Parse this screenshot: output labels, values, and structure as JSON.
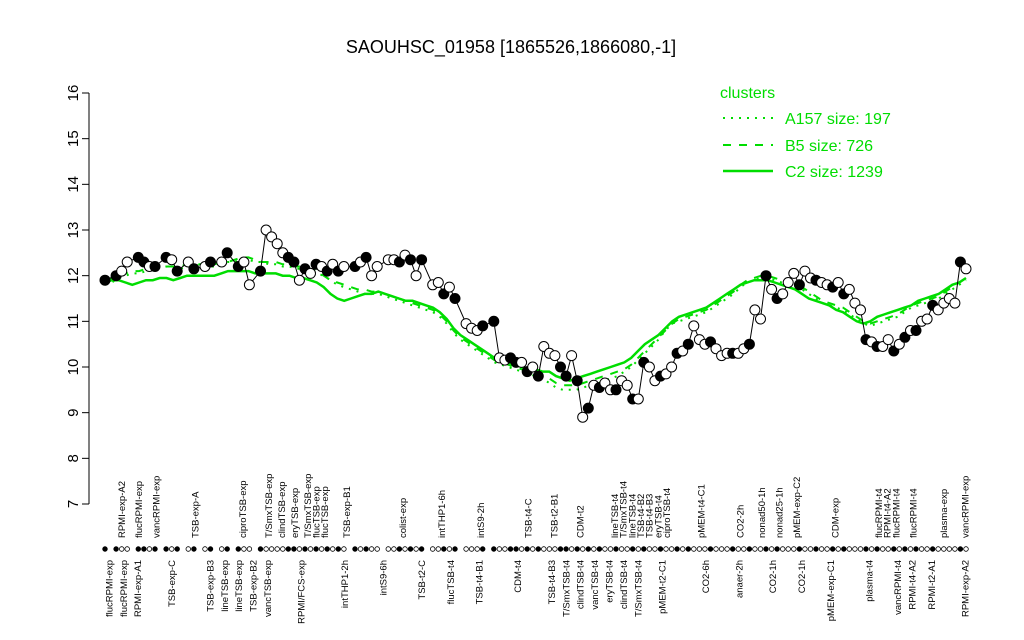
{
  "chart_data": {
    "type": "line",
    "title": "SAOUHSC_01958 [1865526,1866080,-1]",
    "ylim": [
      7,
      16
    ],
    "yticks": [
      7,
      8,
      9,
      10,
      11,
      12,
      13,
      14,
      15,
      16
    ],
    "xlim": [
      1,
      166
    ],
    "top_labels": [
      {
        "x": 5,
        "text": "RPMI-exp-A2"
      },
      {
        "x": 9,
        "text": "flucRPMI-exp"
      },
      {
        "x": 13,
        "text": "vancRPMI-exp"
      },
      {
        "x": 22,
        "text": "TSB-exp-A"
      },
      {
        "x": 33,
        "text": "ciproTSB-exp"
      },
      {
        "x": 39,
        "text": "T/SmxTSB-exp"
      },
      {
        "x": 42,
        "text": "clindTSB-exp"
      },
      {
        "x": 45,
        "text": "eryTSB-exp"
      },
      {
        "x": 48,
        "text": "T/SmxTSB-exp"
      },
      {
        "x": 50,
        "text": "flucTSB-exp"
      },
      {
        "x": 52,
        "text": "flucTSB-exp"
      },
      {
        "x": 57,
        "text": "TSB-exp-B1"
      },
      {
        "x": 70,
        "text": "colist-exp"
      },
      {
        "x": 79,
        "text": "intTHP1-6h"
      },
      {
        "x": 88,
        "text": "intS9-2h"
      },
      {
        "x": 99,
        "text": "TSB-t4-C"
      },
      {
        "x": 105,
        "text": "TSB-t2-B1"
      },
      {
        "x": 111,
        "text": "CDM-t2"
      },
      {
        "x": 119,
        "text": "lineTSB-t4"
      },
      {
        "x": 121,
        "text": "T/SmxTSB-t4"
      },
      {
        "x": 123,
        "text": "lineTSB-t4"
      },
      {
        "x": 125,
        "text": "TSB-t4-B2"
      },
      {
        "x": 127,
        "text": "TSB-t4-B3"
      },
      {
        "x": 129,
        "text": "eryTSB-t4"
      },
      {
        "x": 131,
        "text": "ciproTSB-t4"
      },
      {
        "x": 139,
        "text": "pMEM-t4-C1"
      },
      {
        "x": 148,
        "text": "CO2-2h"
      },
      {
        "x": 153,
        "text": "nonad50-1h"
      },
      {
        "x": 157,
        "text": "nonad25-1h"
      },
      {
        "x": 161,
        "text": "pMEM-exp-C2"
      },
      {
        "x": 170,
        "text": "CDM-exp"
      },
      {
        "x": 180,
        "text": "flucRPMI-t4"
      },
      {
        "x": 182,
        "text": "RPMI-t4-A2"
      },
      {
        "x": 184,
        "text": "flucRPMI-t4"
      },
      {
        "x": 188,
        "text": "flucRPMI-t4"
      },
      {
        "x": 195,
        "text": "plasma-exp"
      },
      {
        "x": 200,
        "text": "vancRPMI-exp"
      }
    ],
    "bottom_labels": [
      {
        "x": 2,
        "text": "flucRPMI-exp"
      },
      {
        "x": 5,
        "text": "flucRPMI-exp"
      },
      {
        "x": 8,
        "text": "RPMI-exp-A1"
      },
      {
        "x": 15,
        "text": "TSB-exp-C"
      },
      {
        "x": 23,
        "text": "TSB-exp-B3"
      },
      {
        "x": 26,
        "text": "lineTSB-exp"
      },
      {
        "x": 29,
        "text": "lineTSB-exp"
      },
      {
        "x": 32,
        "text": "TSB-exp-B2"
      },
      {
        "x": 35,
        "text": "vancTSB-exp"
      },
      {
        "x": 42,
        "text": "RPMI/FCS-exp"
      },
      {
        "x": 51,
        "text": "intTHP1-2h"
      },
      {
        "x": 59,
        "text": "intS9-6h"
      },
      {
        "x": 67,
        "text": "TSB-t2-C"
      },
      {
        "x": 73,
        "text": "flucTSB-t4"
      },
      {
        "x": 79,
        "text": "TSB-t4-B1"
      },
      {
        "x": 87,
        "text": "CDM-t4"
      },
      {
        "x": 94,
        "text": "TSB-t4-B3"
      },
      {
        "x": 97,
        "text": "T/SmxTSB-t4"
      },
      {
        "x": 100,
        "text": "clindTSB-t4"
      },
      {
        "x": 103,
        "text": "vancTSB-t4"
      },
      {
        "x": 106,
        "text": "eryTSB-t4"
      },
      {
        "x": 109,
        "text": "clindTSB-t4"
      },
      {
        "x": 112,
        "text": "T/SmxTSB-t4"
      },
      {
        "x": 117,
        "text": "pMEM-t2-C1"
      },
      {
        "x": 126,
        "text": "CO2-6h"
      },
      {
        "x": 133,
        "text": "anaer-2h"
      },
      {
        "x": 140,
        "text": "CO2-1h"
      },
      {
        "x": 146,
        "text": "CO2-1h"
      },
      {
        "x": 152,
        "text": "pMEM-exp-C1"
      },
      {
        "x": 160,
        "text": "plasma-t4"
      },
      {
        "x": 166,
        "text": "vancRPMI-t4"
      },
      {
        "x": 169,
        "text": "RPMI-t4-A2"
      },
      {
        "x": 173,
        "text": "RPMI-t2-A1"
      },
      {
        "x": 180,
        "text": "RPMI-exp-A2"
      }
    ],
    "series": [
      {
        "name": "A157 size: 197",
        "style": "dotted",
        "color": "#00dd00",
        "values": [
          11.8,
          11.85,
          11.95,
          12.0,
          12.05,
          12.05,
          12.1,
          12.15,
          12.2,
          12.2,
          12.15,
          12.15,
          12.2,
          12.2,
          12.25,
          12.2,
          12.2,
          12.25,
          12.3,
          12.3,
          12.35,
          12.35,
          12.3,
          12.3,
          12.25,
          12.25,
          12.2,
          12.2,
          12.15,
          12.15,
          12.1,
          12.05,
          12.0,
          11.9,
          11.8,
          11.75,
          11.7,
          11.65,
          11.6,
          11.6,
          11.6,
          11.55,
          11.5,
          11.45,
          11.4,
          11.35,
          11.3,
          11.25,
          11.2,
          11.1,
          10.95,
          10.75,
          10.6,
          10.5,
          10.4,
          10.3,
          10.2,
          10.1,
          10.05,
          10.0,
          9.95,
          9.9,
          9.85,
          9.8,
          9.75,
          9.65,
          9.55,
          9.5,
          9.5,
          9.5,
          9.55,
          9.6,
          9.65,
          9.7,
          9.75,
          9.8,
          9.9,
          10.0,
          10.15,
          10.3,
          10.45,
          10.6,
          10.8,
          10.95,
          11.0,
          11.05,
          11.1,
          11.15,
          11.2,
          11.3,
          11.4,
          11.5,
          11.6,
          11.75,
          11.85,
          11.9,
          11.95,
          11.95,
          11.9,
          11.85,
          11.8,
          11.75,
          11.7,
          11.6,
          11.5,
          11.4,
          11.35,
          11.3,
          11.25,
          11.15,
          11.05,
          10.95,
          10.9,
          10.95,
          11.0,
          11.05,
          11.1,
          11.2,
          11.3,
          11.35,
          11.4,
          11.45,
          11.5,
          11.6,
          11.7,
          11.8,
          11.9
        ]
      },
      {
        "name": "B5 size: 726",
        "style": "dashed",
        "color": "#00dd00",
        "values": [
          11.9,
          11.95,
          12.0,
          12.05,
          12.1,
          12.1,
          12.15,
          12.15,
          12.2,
          12.2,
          12.2,
          12.2,
          12.25,
          12.25,
          12.25,
          12.25,
          12.25,
          12.3,
          12.3,
          12.35,
          12.4,
          12.4,
          12.35,
          12.3,
          12.3,
          12.3,
          12.25,
          12.25,
          12.2,
          12.2,
          12.15,
          12.1,
          12.0,
          11.9,
          11.85,
          11.8,
          11.75,
          11.7,
          11.7,
          11.65,
          11.65,
          11.6,
          11.55,
          11.5,
          11.45,
          11.4,
          11.35,
          11.3,
          11.25,
          11.15,
          11.0,
          10.8,
          10.65,
          10.55,
          10.45,
          10.35,
          10.25,
          10.15,
          10.1,
          10.05,
          10.0,
          9.95,
          9.9,
          9.85,
          9.8,
          9.75,
          9.65,
          9.6,
          9.6,
          9.6,
          9.65,
          9.7,
          9.75,
          9.8,
          9.85,
          9.9,
          9.95,
          10.05,
          10.2,
          10.35,
          10.5,
          10.65,
          10.8,
          10.95,
          11.05,
          11.1,
          11.15,
          11.2,
          11.25,
          11.35,
          11.45,
          11.55,
          11.65,
          11.8,
          11.9,
          11.95,
          12.0,
          12.0,
          11.95,
          11.9,
          11.85,
          11.8,
          11.75,
          11.65,
          11.55,
          11.45,
          11.4,
          11.35,
          11.3,
          11.2,
          11.1,
          11.0,
          10.95,
          11.0,
          11.05,
          11.1,
          11.15,
          11.25,
          11.35,
          11.4,
          11.45,
          11.5,
          11.55,
          11.65,
          11.75,
          11.85,
          11.95
        ]
      },
      {
        "name": "C2 size: 1239",
        "style": "solid",
        "color": "#00dd00",
        "values": [
          11.85,
          11.9,
          11.9,
          11.85,
          11.8,
          11.85,
          11.9,
          11.9,
          11.95,
          11.95,
          11.9,
          11.95,
          12.0,
          12.0,
          12.0,
          12.0,
          12.0,
          12.05,
          12.1,
          12.1,
          12.1,
          12.1,
          12.05,
          12.05,
          12.05,
          12.05,
          12.0,
          12.0,
          11.95,
          11.95,
          11.9,
          11.85,
          11.75,
          11.6,
          11.5,
          11.45,
          11.5,
          11.55,
          11.6,
          11.6,
          11.65,
          11.6,
          11.55,
          11.5,
          11.45,
          11.45,
          11.4,
          11.35,
          11.3,
          11.2,
          11.05,
          10.85,
          10.7,
          10.6,
          10.5,
          10.4,
          10.3,
          10.2,
          10.15,
          10.1,
          10.05,
          10.0,
          9.95,
          9.95,
          9.9,
          9.9,
          9.8,
          9.75,
          9.7,
          9.75,
          9.8,
          9.85,
          9.9,
          9.95,
          10.0,
          10.05,
          10.1,
          10.2,
          10.35,
          10.5,
          10.6,
          10.7,
          10.85,
          11.0,
          11.1,
          11.15,
          11.2,
          11.25,
          11.3,
          11.4,
          11.5,
          11.6,
          11.7,
          11.8,
          11.85,
          11.9,
          11.9,
          11.9,
          11.85,
          11.8,
          11.75,
          11.7,
          11.6,
          11.5,
          11.45,
          11.4,
          11.35,
          11.25,
          11.2,
          11.1,
          11.0,
          10.95,
          11.0,
          11.1,
          11.15,
          11.2,
          11.25,
          11.3,
          11.35,
          11.45,
          11.5,
          11.55,
          11.6,
          11.7,
          11.8,
          11.85,
          11.95
        ]
      }
    ],
    "points_filled": [
      [
        1,
        11.9
      ],
      [
        3,
        12.0
      ],
      [
        7,
        12.4
      ],
      [
        8,
        12.3
      ],
      [
        10,
        12.2
      ],
      [
        12,
        12.4
      ],
      [
        14,
        12.1
      ],
      [
        17,
        12.15
      ],
      [
        20,
        12.3
      ],
      [
        23,
        12.5
      ],
      [
        25,
        12.2
      ],
      [
        29,
        12.1
      ],
      [
        34,
        12.4
      ],
      [
        35,
        12.3
      ],
      [
        37,
        12.15
      ],
      [
        39,
        12.25
      ],
      [
        41,
        12.1
      ],
      [
        43,
        12.1
      ],
      [
        46,
        12.2
      ],
      [
        48,
        12.4
      ],
      [
        54,
        12.3
      ],
      [
        56,
        12.35
      ],
      [
        58,
        12.35
      ],
      [
        62,
        11.6
      ],
      [
        64,
        11.5
      ],
      [
        69,
        10.9
      ],
      [
        71,
        11.0
      ],
      [
        74,
        10.2
      ],
      [
        75,
        10.1
      ],
      [
        77,
        9.9
      ],
      [
        79,
        9.8
      ],
      [
        83,
        10.0
      ],
      [
        84,
        9.8
      ],
      [
        86,
        9.7
      ],
      [
        88,
        9.1
      ],
      [
        90,
        9.55
      ],
      [
        93,
        9.5
      ],
      [
        96,
        9.3
      ],
      [
        98,
        10.1
      ],
      [
        101,
        9.8
      ],
      [
        104,
        10.3
      ],
      [
        106,
        10.5
      ],
      [
        110,
        10.55
      ],
      [
        114,
        10.3
      ],
      [
        117,
        10.5
      ],
      [
        120,
        12.0
      ],
      [
        122,
        11.5
      ],
      [
        126,
        11.8
      ],
      [
        129,
        11.9
      ],
      [
        132,
        11.75
      ],
      [
        134,
        11.6
      ],
      [
        138,
        10.6
      ],
      [
        140,
        10.45
      ],
      [
        143,
        10.35
      ],
      [
        145,
        10.65
      ],
      [
        147,
        10.8
      ],
      [
        150,
        11.35
      ],
      [
        155,
        12.3
      ]
    ],
    "points_open": [
      [
        4,
        12.1
      ],
      [
        5,
        12.3
      ],
      [
        9,
        12.2
      ],
      [
        13,
        12.35
      ],
      [
        16,
        12.3
      ],
      [
        19,
        12.2
      ],
      [
        22,
        12.3
      ],
      [
        26,
        12.3
      ],
      [
        27,
        11.8
      ],
      [
        30,
        13.0
      ],
      [
        31,
        12.85
      ],
      [
        32,
        12.7
      ],
      [
        33,
        12.5
      ],
      [
        36,
        11.9
      ],
      [
        38,
        12.05
      ],
      [
        40,
        12.2
      ],
      [
        42,
        12.25
      ],
      [
        44,
        12.2
      ],
      [
        47,
        12.3
      ],
      [
        49,
        12.0
      ],
      [
        50,
        12.2
      ],
      [
        52,
        12.35
      ],
      [
        53,
        12.35
      ],
      [
        55,
        12.45
      ],
      [
        57,
        12.0
      ],
      [
        60,
        11.8
      ],
      [
        61,
        11.85
      ],
      [
        63,
        11.75
      ],
      [
        66,
        10.95
      ],
      [
        67,
        10.85
      ],
      [
        68,
        10.8
      ],
      [
        72,
        10.2
      ],
      [
        73,
        10.15
      ],
      [
        76,
        10.1
      ],
      [
        78,
        10.0
      ],
      [
        80,
        10.45
      ],
      [
        81,
        10.3
      ],
      [
        82,
        10.25
      ],
      [
        85,
        10.25
      ],
      [
        87,
        8.9
      ],
      [
        89,
        9.6
      ],
      [
        91,
        9.65
      ],
      [
        92,
        9.5
      ],
      [
        94,
        9.7
      ],
      [
        95,
        9.6
      ],
      [
        97,
        9.3
      ],
      [
        99,
        10.0
      ],
      [
        100,
        9.7
      ],
      [
        102,
        9.85
      ],
      [
        103,
        10.0
      ],
      [
        105,
        10.35
      ],
      [
        107,
        10.9
      ],
      [
        108,
        10.6
      ],
      [
        109,
        10.5
      ],
      [
        111,
        10.4
      ],
      [
        112,
        10.25
      ],
      [
        113,
        10.3
      ],
      [
        115,
        10.3
      ],
      [
        116,
        10.4
      ],
      [
        118,
        11.25
      ],
      [
        119,
        11.05
      ],
      [
        121,
        11.7
      ],
      [
        123,
        11.6
      ],
      [
        124,
        11.85
      ],
      [
        125,
        12.05
      ],
      [
        127,
        12.1
      ],
      [
        128,
        11.95
      ],
      [
        130,
        11.85
      ],
      [
        131,
        11.8
      ],
      [
        133,
        11.85
      ],
      [
        135,
        11.7
      ],
      [
        136,
        11.4
      ],
      [
        137,
        11.25
      ],
      [
        139,
        10.55
      ],
      [
        141,
        10.45
      ],
      [
        142,
        10.6
      ],
      [
        144,
        10.5
      ],
      [
        146,
        10.8
      ],
      [
        148,
        11.0
      ],
      [
        149,
        11.05
      ],
      [
        151,
        11.25
      ],
      [
        152,
        11.4
      ],
      [
        153,
        11.5
      ],
      [
        154,
        11.4
      ],
      [
        156,
        12.15
      ]
    ],
    "legend": {
      "title": "clusters",
      "position": "top-right",
      "entries": [
        {
          "label": "A157 size: 197",
          "style": "dotted"
        },
        {
          "label": "B5 size: 726",
          "style": "dashed"
        },
        {
          "label": "C2 size: 1239",
          "style": "solid"
        }
      ]
    }
  }
}
